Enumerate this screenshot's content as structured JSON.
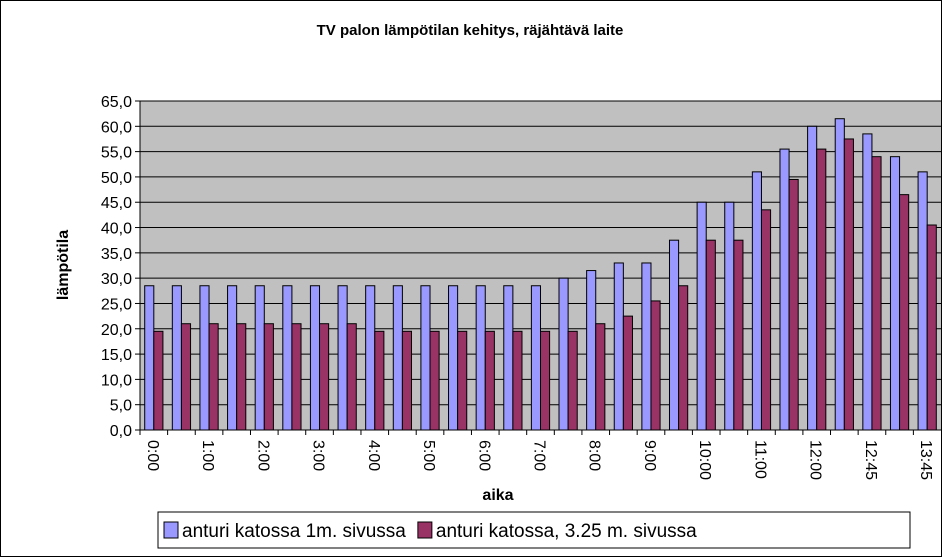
{
  "chart_data": {
    "type": "bar",
    "title": "TV palon lämpötilan kehitys, räjähtävä laite",
    "x_label": "aika",
    "y_label": "lämpötila",
    "categories": [
      "0:00",
      null,
      "1:00",
      null,
      "2:00",
      null,
      "3:00",
      null,
      "4:00",
      null,
      "5:00",
      null,
      "6:00",
      null,
      "7:00",
      null,
      "8:00",
      null,
      "9:00",
      null,
      "10:00",
      null,
      "11:00",
      null,
      "12:00",
      null,
      "12:45",
      null,
      "13:45"
    ],
    "series": [
      {
        "name": "anturi katossa 1m. sivussa",
        "color": "#9999ff",
        "values": [
          28.5,
          28.5,
          28.5,
          28.5,
          28.5,
          28.5,
          28.5,
          28.5,
          28.5,
          28.5,
          28.5,
          28.5,
          28.5,
          28.5,
          28.5,
          30,
          31.5,
          33,
          33,
          37.5,
          45,
          45,
          51,
          55.5,
          60,
          61.5,
          58.5,
          54,
          51
        ]
      },
      {
        "name": "anturi katossa, 3.25 m. sivussa",
        "color": "#993366",
        "values": [
          19.5,
          21,
          21,
          21,
          21,
          21,
          21,
          21,
          19.5,
          19.5,
          19.5,
          19.5,
          19.5,
          19.5,
          19.5,
          19.5,
          21,
          22.5,
          25.5,
          28.5,
          37.5,
          37.5,
          43.5,
          49.5,
          55.5,
          57.5,
          54,
          46.5,
          40.5
        ]
      }
    ],
    "ylim": [
      0,
      65
    ],
    "yticks": [
      {
        "value": 0,
        "label": "0,0"
      },
      {
        "value": 5,
        "label": "5,0"
      },
      {
        "value": 10,
        "label": "10,0"
      },
      {
        "value": 15,
        "label": "15,0"
      },
      {
        "value": 20,
        "label": "20,0"
      },
      {
        "value": 25,
        "label": "25,0"
      },
      {
        "value": 30,
        "label": "30,0"
      },
      {
        "value": 35,
        "label": "35,0"
      },
      {
        "value": 40,
        "label": "40,0"
      },
      {
        "value": 45,
        "label": "45,0"
      },
      {
        "value": 50,
        "label": "50,0"
      },
      {
        "value": 55,
        "label": "55,0"
      },
      {
        "value": 60,
        "label": "60,0"
      },
      {
        "value": 65,
        "label": "65,0"
      }
    ],
    "grid": true,
    "plot_background": "#c0c0c0",
    "legend_position": "bottom"
  }
}
